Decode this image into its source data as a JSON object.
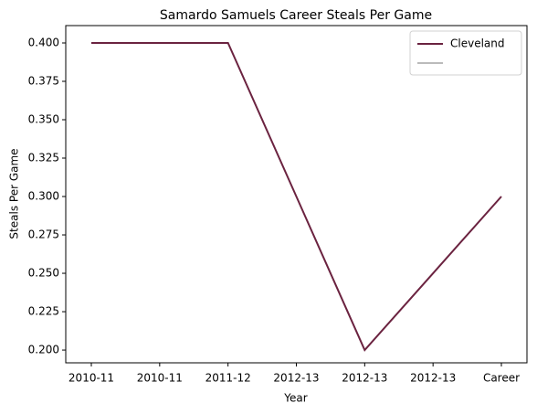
{
  "chart_data": {
    "type": "line",
    "title": "Samardo Samuels Career Steals Per Game",
    "xlabel": "Year",
    "ylabel": "Steals Per Game",
    "categories": [
      "2010-11",
      "2010-11",
      "2011-12",
      "2012-13",
      "2012-13",
      "2012-13",
      "Career"
    ],
    "series": [
      {
        "name": "Cleveland",
        "color": "#6b2340",
        "values": [
          0.4,
          0.4,
          0.4,
          0.3,
          0.2,
          0.25,
          0.3
        ]
      },
      {
        "color": "#bbbbbb",
        "values": [
          null,
          null,
          null,
          null,
          null,
          null,
          null
        ]
      }
    ],
    "ylim": [
      0.1917,
      0.4113
    ],
    "yticks": [
      {
        "value": 0.2,
        "label": "0.200"
      },
      {
        "value": 0.225,
        "label": "0.225"
      },
      {
        "value": 0.25,
        "label": "0.250"
      },
      {
        "value": 0.275,
        "label": "0.275"
      },
      {
        "value": 0.3,
        "label": "0.300"
      },
      {
        "value": 0.325,
        "label": "0.325"
      },
      {
        "value": 0.35,
        "label": "0.350"
      },
      {
        "value": 0.375,
        "label": "0.375"
      },
      {
        "value": 0.4,
        "label": "0.400"
      }
    ],
    "grid": false,
    "legend": "upper right"
  }
}
